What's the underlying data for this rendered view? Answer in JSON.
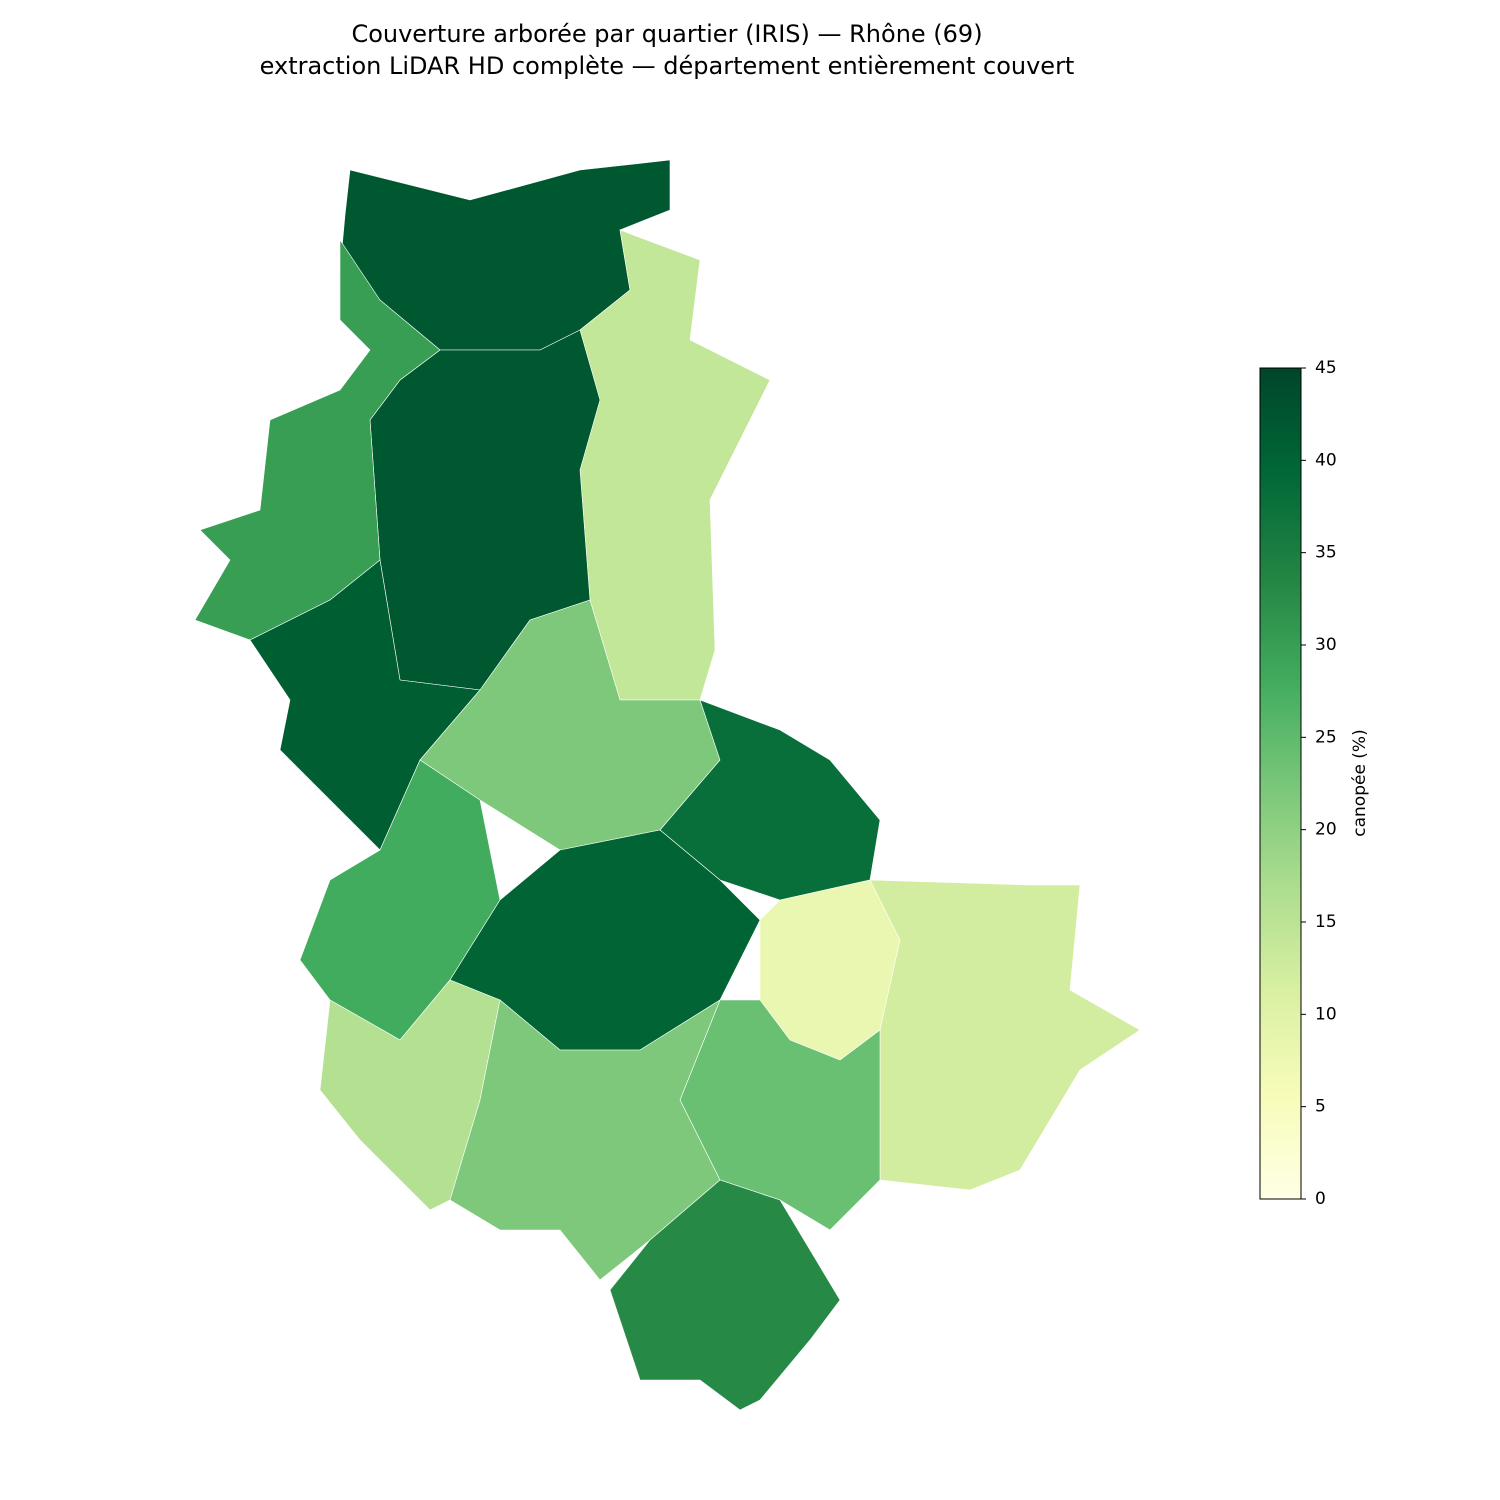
{
  "chart_data": {
    "type": "choropleth",
    "title": "Couverture arborée par quartier (IRIS) — Rhône (69)",
    "subtitle": "extraction LiDAR HD complète — département entièrement couvert",
    "values": [
      42,
      14,
      42,
      30,
      41,
      22,
      38,
      28,
      40,
      8,
      12,
      24,
      16,
      22,
      33
    ],
    "colorbar_label": "canopée (%)",
    "clim": [
      0,
      45
    ],
    "cticks": [
      0,
      5,
      10,
      15,
      20,
      25,
      30,
      35,
      40,
      45
    ],
    "colormap": [
      "#ffffe5",
      "#f7fcb9",
      "#d9f0a3",
      "#addd8e",
      "#78c679",
      "#41ab5d",
      "#238443",
      "#006837",
      "#004529"
    ]
  }
}
